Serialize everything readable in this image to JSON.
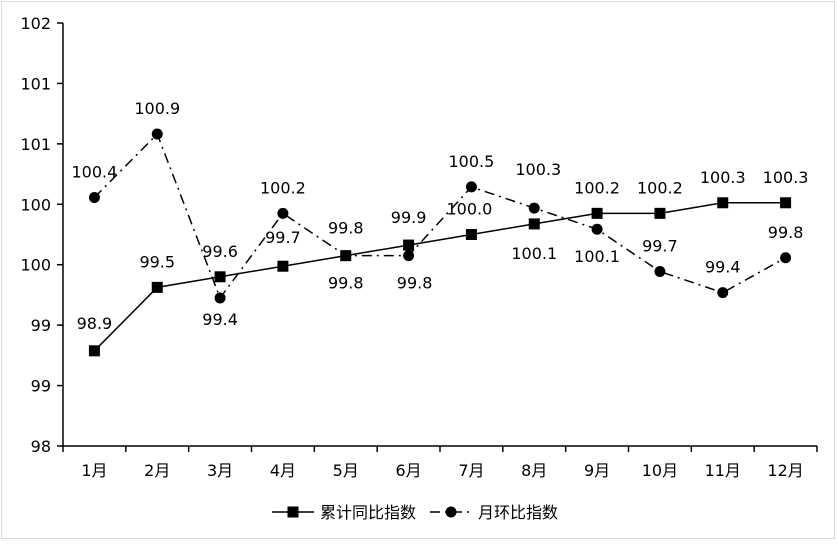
{
  "chart_data": {
    "type": "line",
    "categories": [
      "1月",
      "2月",
      "3月",
      "4月",
      "5月",
      "6月",
      "7月",
      "8月",
      "9月",
      "10月",
      "11月",
      "12月"
    ],
    "y_tick_labels": [
      "98",
      "99",
      "99",
      "100",
      "100",
      "101",
      "101",
      "102"
    ],
    "ylim": [
      98,
      102
    ],
    "grid": false,
    "legend_position": "bottom",
    "series": [
      {
        "name": "累计同比指数",
        "marker": "square",
        "line_style": "solid",
        "values": [
          98.9,
          99.5,
          99.6,
          99.7,
          99.8,
          99.9,
          100.0,
          100.1,
          100.2,
          100.2,
          100.3,
          100.3
        ],
        "labels": [
          "98.9",
          "99.5",
          "99.6",
          "99.7",
          "99.8",
          "99.9",
          "100.0",
          "100.1",
          "100.2",
          "100.2",
          "100.3",
          "100.3"
        ]
      },
      {
        "name": "月环比指数",
        "marker": "circle",
        "line_style": "dash-dot",
        "values": [
          100.35,
          100.95,
          99.4,
          100.2,
          99.8,
          99.8,
          100.45,
          100.25,
          100.05,
          99.65,
          99.45,
          99.78
        ],
        "labels": [
          "100.4",
          "100.9",
          "99.4",
          "100.2",
          "99.8",
          "99.8",
          "100.5",
          "100.3",
          "100.1",
          "99.7",
          "99.4",
          "99.8"
        ]
      }
    ]
  },
  "colors": {
    "line": "#000000",
    "axis": "#000000",
    "border": "#d9d9d9",
    "background": "#ffffff"
  }
}
